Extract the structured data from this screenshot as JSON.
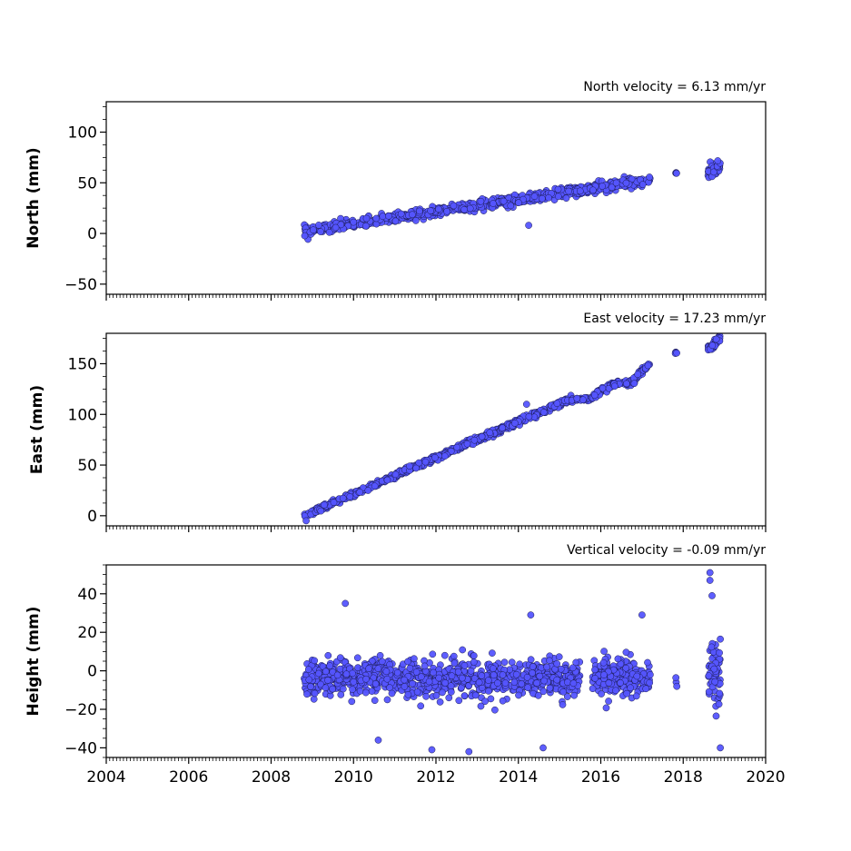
{
  "chart_data": [
    {
      "type": "scatter",
      "title": "North velocity = 6.13 mm/yr",
      "xlabel": "",
      "ylabel": "North (mm)",
      "xlim": [
        2004,
        2020
      ],
      "ylim": [
        -60,
        130
      ],
      "x_ticks": [
        "",
        "",
        "",
        "",
        "",
        "",
        "",
        "",
        ""
      ],
      "y_ticks": [
        "−50",
        "0",
        "50",
        "100"
      ],
      "y_tick_values": [
        -50,
        0,
        50,
        100
      ],
      "marker_color": "#5555ff",
      "edge_color": "#1a1a4d",
      "segments": [
        {
          "x_start": 2008.8,
          "x_end": 2017.2,
          "y_start": 2,
          "y_end": 53,
          "noise": 4,
          "count": 700
        },
        {
          "x_start": 2017.8,
          "x_end": 2017.85,
          "y_start": 59,
          "y_end": 60,
          "noise": 1,
          "count": 4
        },
        {
          "x_start": 2018.6,
          "x_end": 2018.9,
          "y_start": 60,
          "y_end": 66,
          "noise": 5,
          "count": 50
        }
      ],
      "outliers": [
        {
          "x": 2014.25,
          "y": 8
        }
      ]
    },
    {
      "type": "scatter",
      "title": "East velocity = 17.23 mm/yr",
      "xlabel": "",
      "ylabel": "East (mm)",
      "xlim": [
        2004,
        2020
      ],
      "ylim": [
        -10,
        180
      ],
      "x_ticks": [
        "",
        "",
        "",
        "",
        "",
        "",
        "",
        "",
        ""
      ],
      "y_ticks": [
        "0",
        "50",
        "100",
        "150"
      ],
      "y_tick_values": [
        0,
        50,
        100,
        150
      ],
      "marker_color": "#5555ff",
      "edge_color": "#1a1a4d",
      "segments": [
        {
          "x_start": 2008.8,
          "x_end": 2015.3,
          "y_start": 0,
          "y_end": 116,
          "noise": 2.5,
          "count": 550
        },
        {
          "x_start": 2015.3,
          "x_end": 2015.8,
          "y_start": 114,
          "y_end": 116,
          "noise": 1.5,
          "count": 35
        },
        {
          "x_start": 2015.8,
          "x_end": 2016.3,
          "y_start": 117,
          "y_end": 130,
          "noise": 2.5,
          "count": 40
        },
        {
          "x_start": 2016.3,
          "x_end": 2016.8,
          "y_start": 130,
          "y_end": 132,
          "noise": 2.5,
          "count": 35
        },
        {
          "x_start": 2016.8,
          "x_end": 2017.2,
          "y_start": 135,
          "y_end": 150,
          "noise": 2.5,
          "count": 35
        },
        {
          "x_start": 2017.8,
          "x_end": 2017.85,
          "y_start": 160,
          "y_end": 161,
          "noise": 1,
          "count": 4
        },
        {
          "x_start": 2018.6,
          "x_end": 2018.9,
          "y_start": 164,
          "y_end": 176,
          "noise": 3,
          "count": 50
        }
      ],
      "outliers": [
        {
          "x": 2014.2,
          "y": 110
        },
        {
          "x": 2008.85,
          "y": -5
        }
      ]
    },
    {
      "type": "scatter",
      "title": "Vertical velocity = -0.09 mm/yr",
      "xlabel": "",
      "ylabel": "Height (mm)",
      "xlim": [
        2004,
        2020
      ],
      "ylim": [
        -45,
        55
      ],
      "x_ticks": [
        "2004",
        "2006",
        "2008",
        "2010",
        "2012",
        "2014",
        "2016",
        "2018",
        "2020"
      ],
      "y_ticks": [
        "−40",
        "−20",
        "0",
        "20",
        "40"
      ],
      "y_tick_values": [
        -40,
        -20,
        0,
        20,
        40
      ],
      "marker_color": "#5555ff",
      "edge_color": "#1a1a4d",
      "segments": [
        {
          "x_start": 2008.8,
          "x_end": 2015.5,
          "y_start": -3,
          "y_end": -5,
          "noise": 8,
          "count": 900
        },
        {
          "x_start": 2015.8,
          "x_end": 2017.2,
          "y_start": -3,
          "y_end": -3,
          "noise": 8,
          "count": 220
        },
        {
          "x_start": 2017.8,
          "x_end": 2017.85,
          "y_start": -5,
          "y_end": -5,
          "noise": 3,
          "count": 3
        },
        {
          "x_start": 2018.6,
          "x_end": 2018.9,
          "y_start": 0,
          "y_end": 0,
          "noise": 13,
          "count": 60
        }
      ],
      "outliers": [
        {
          "x": 2018.65,
          "y": 51
        },
        {
          "x": 2018.65,
          "y": 47
        },
        {
          "x": 2018.7,
          "y": 39
        },
        {
          "x": 2009.8,
          "y": 35
        },
        {
          "x": 2014.3,
          "y": 29
        },
        {
          "x": 2017.0,
          "y": 29
        },
        {
          "x": 2011.9,
          "y": -41
        },
        {
          "x": 2012.8,
          "y": -42
        },
        {
          "x": 2014.6,
          "y": -40
        },
        {
          "x": 2018.9,
          "y": -40
        },
        {
          "x": 2010.6,
          "y": -36
        }
      ]
    }
  ]
}
